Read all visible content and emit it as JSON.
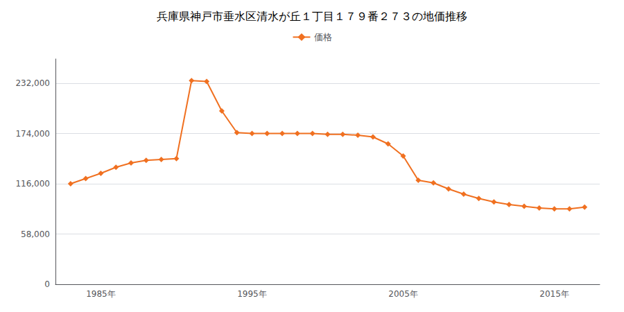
{
  "chart_data": {
    "type": "line",
    "title": "兵庫県神戸市垂水区清水が丘１丁目１７９番２７３の地価推移",
    "series": [
      {
        "name": "価格",
        "color": "#f07020",
        "marker": "diamond",
        "values": [
          116000,
          122000,
          128000,
          135000,
          140000,
          143000,
          144000,
          145000,
          235000,
          234000,
          200000,
          175000,
          174000,
          174000,
          174000,
          174000,
          174000,
          173000,
          173000,
          172000,
          170000,
          162000,
          148000,
          120000,
          117000,
          110000,
          104000,
          99000,
          95000,
          92000,
          90000,
          88000,
          87000,
          87000,
          89000
        ]
      }
    ],
    "x": [
      1983,
      1984,
      1985,
      1986,
      1987,
      1988,
      1989,
      1990,
      1991,
      1992,
      1993,
      1994,
      1995,
      1996,
      1997,
      1998,
      1999,
      2000,
      2001,
      2002,
      2003,
      2004,
      2005,
      2006,
      2007,
      2008,
      2009,
      2010,
      2011,
      2012,
      2013,
      2014,
      2015,
      2016,
      2017
    ],
    "xlim": [
      1982,
      2018
    ],
    "xticks": [
      {
        "value": 1985,
        "label": "1985年"
      },
      {
        "value": 1995,
        "label": "1995年"
      },
      {
        "value": 2005,
        "label": "2005年"
      },
      {
        "value": 2015,
        "label": "2015年"
      }
    ],
    "ylim": [
      0,
      260000
    ],
    "yticks": [
      0,
      {
        "value": 58000,
        "label": "58,000"
      },
      {
        "value": 116000,
        "label": "116,000"
      },
      {
        "value": 174000,
        "label": "174,000"
      },
      {
        "value": 232000,
        "label": "232,000"
      }
    ],
    "grid": true,
    "legend": "top"
  }
}
